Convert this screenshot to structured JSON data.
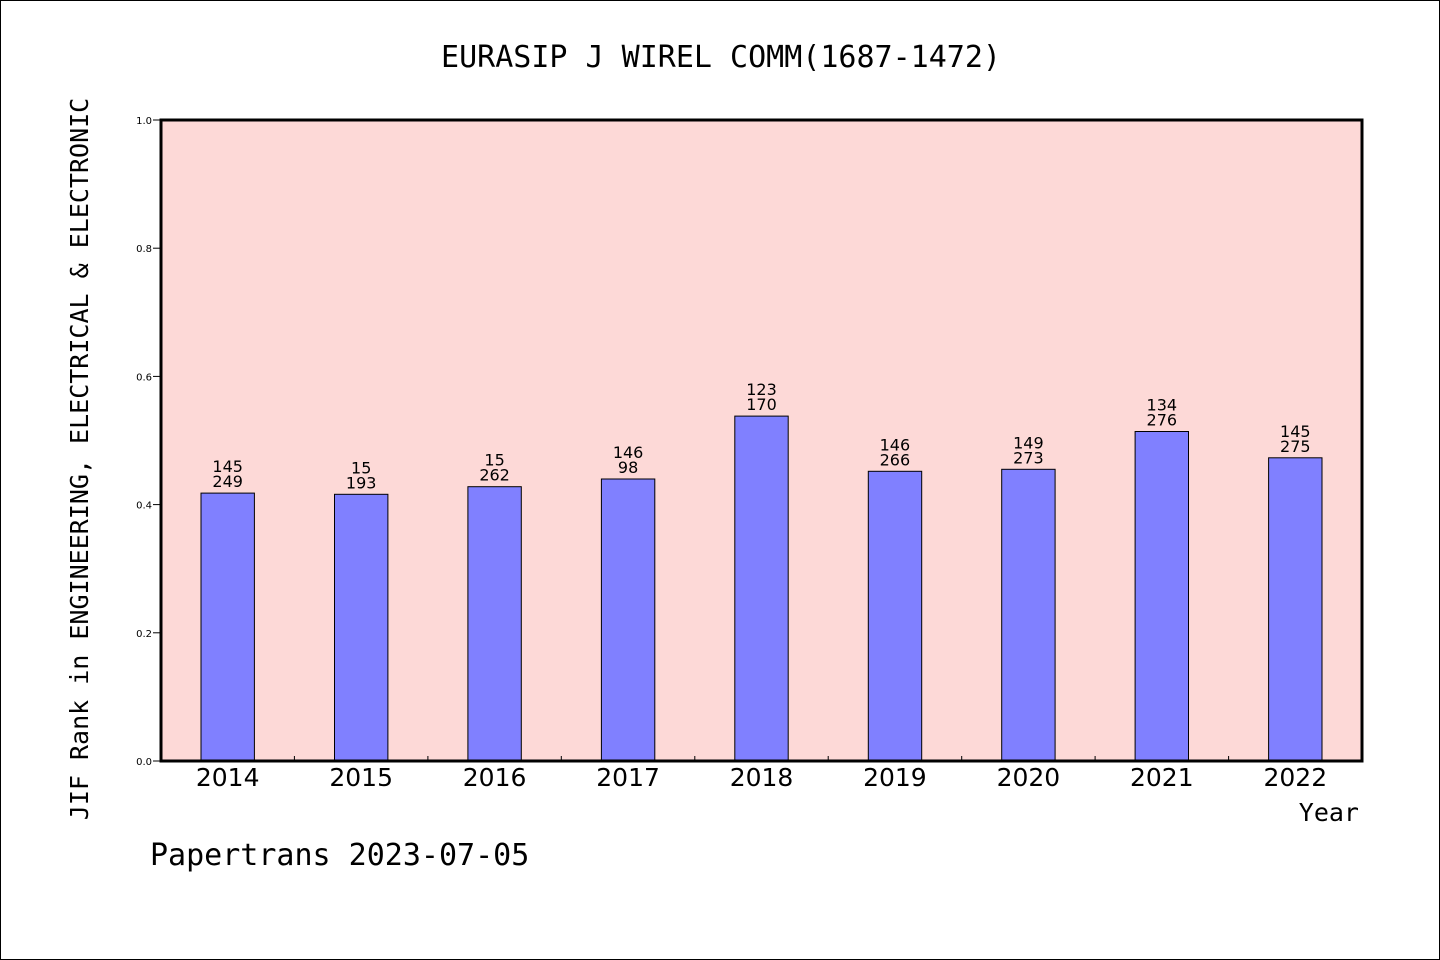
{
  "chart_data": {
    "type": "bar",
    "title": "EURASIP J WIREL COMM(1687-1472)",
    "xlabel": "Year",
    "ylabel": "JIF Rank in ENGINEERING, ELECTRICAL & ELECTRONIC",
    "ylim": [
      0,
      1.0
    ],
    "yticks": [
      "0.0",
      "0.2",
      "0.4",
      "0.6",
      "0.8",
      "1.0"
    ],
    "categories": [
      "2014",
      "2015",
      "2016",
      "2017",
      "2018",
      "2019",
      "2020",
      "2021",
      "2022"
    ],
    "values": [
      0.418,
      0.416,
      0.428,
      0.44,
      0.538,
      0.452,
      0.455,
      0.514,
      0.473
    ],
    "rank_labels": [
      "145",
      "15",
      "15",
      "146",
      "123",
      "146",
      "149",
      "134",
      "145"
    ],
    "total_labels": [
      "249",
      "193",
      "262",
      "98",
      "170",
      "266",
      "273",
      "276",
      "275"
    ],
    "grid": false,
    "colors": {
      "plot_background": "#fdd9d7",
      "bar_fill": "#8080ff",
      "bar_stroke": "#000000"
    }
  },
  "footer": "Papertrans 2023-07-05"
}
